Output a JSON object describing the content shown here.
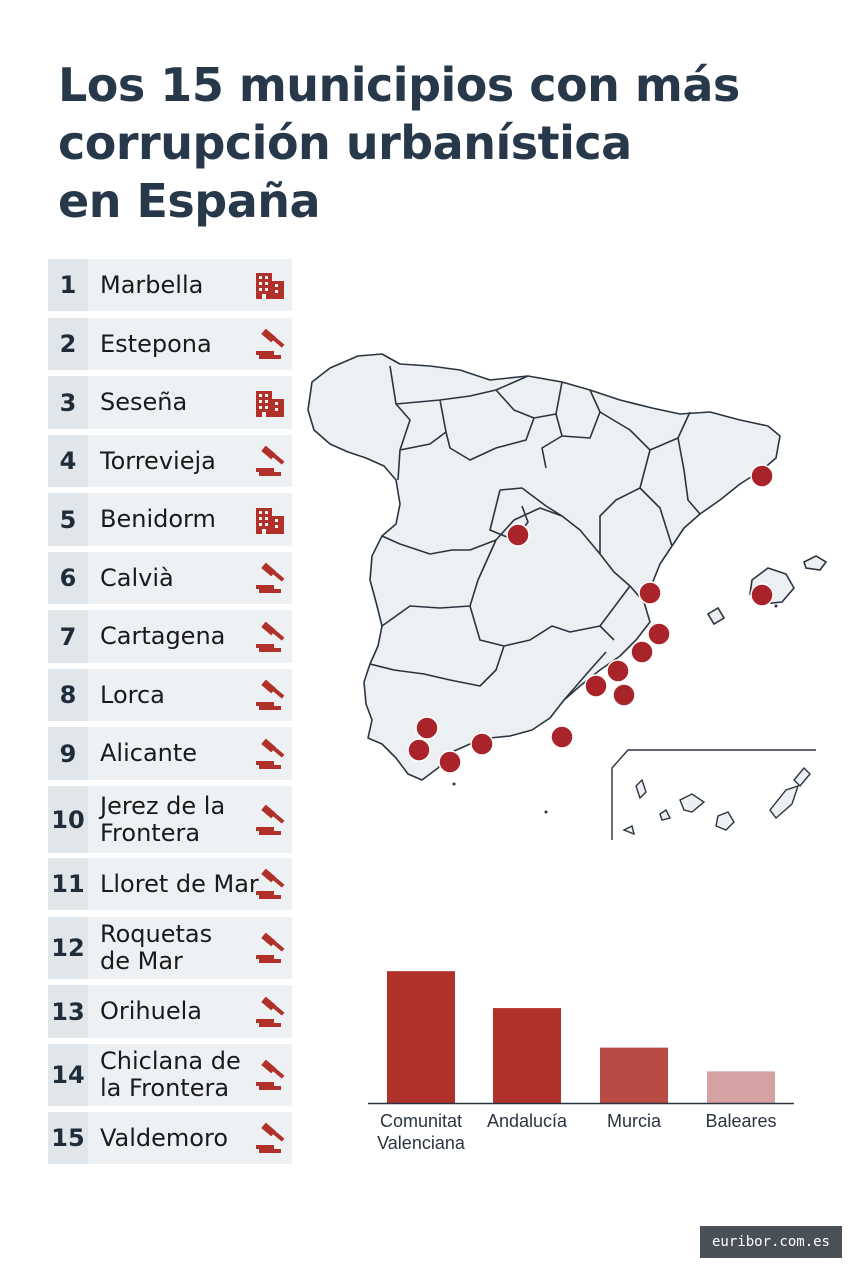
{
  "title": {
    "line1": "Los 15 municipios con más",
    "line2": "corrupción urbanística",
    "line3": "en España"
  },
  "ranking": [
    {
      "rank": "1",
      "name": "Marbella",
      "icon": "building-icon"
    },
    {
      "rank": "2",
      "name": "Estepona",
      "icon": "gavel-icon"
    },
    {
      "rank": "3",
      "name": "Seseña",
      "icon": "building-icon"
    },
    {
      "rank": "4",
      "name": "Torrevieja",
      "icon": "gavel-icon"
    },
    {
      "rank": "5",
      "name": "Benidorm",
      "icon": "building-icon"
    },
    {
      "rank": "6",
      "name": "Calvià",
      "icon": "gavel-icon"
    },
    {
      "rank": "7",
      "name": "Cartagena",
      "icon": "gavel-icon"
    },
    {
      "rank": "8",
      "name": "Lorca",
      "icon": "gavel-icon"
    },
    {
      "rank": "9",
      "name": "Alicante",
      "icon": "gavel-icon"
    },
    {
      "rank": "10",
      "name": "Jerez de la Frontera",
      "icon": "gavel-icon"
    },
    {
      "rank": "11",
      "name": "Lloret de Mar",
      "icon": "gavel-icon"
    },
    {
      "rank": "12",
      "name": "Roquetas de Mar",
      "icon": "gavel-icon"
    },
    {
      "rank": "13",
      "name": "Orihuela",
      "icon": "gavel-icon"
    },
    {
      "rank": "14",
      "name": "Chiclana de la Frontera",
      "icon": "gavel-icon"
    },
    {
      "rank": "15",
      "name": "Valdemoro",
      "icon": "gavel-icon"
    }
  ],
  "colors": {
    "accent": "#b0302a",
    "marker": "#a8232a",
    "title": "#26384a",
    "row_bg": "#eef1f3",
    "num_bg": "#e1e6ea"
  },
  "chart_data": {
    "type": "bar",
    "categories": [
      "Comunitat Valenciana",
      "Andalucía",
      "Murcia",
      "Baleares"
    ],
    "values": [
      5,
      3.6,
      2.1,
      1.2
    ],
    "colors": [
      "#b0302a",
      "#b0302a",
      "#b94a44",
      "#d4a2a0"
    ],
    "title": "",
    "xlabel": "",
    "ylabel": "",
    "ylim": [
      0,
      5.5
    ],
    "grid": false
  },
  "footer": {
    "badge": "euribor.com.es"
  }
}
